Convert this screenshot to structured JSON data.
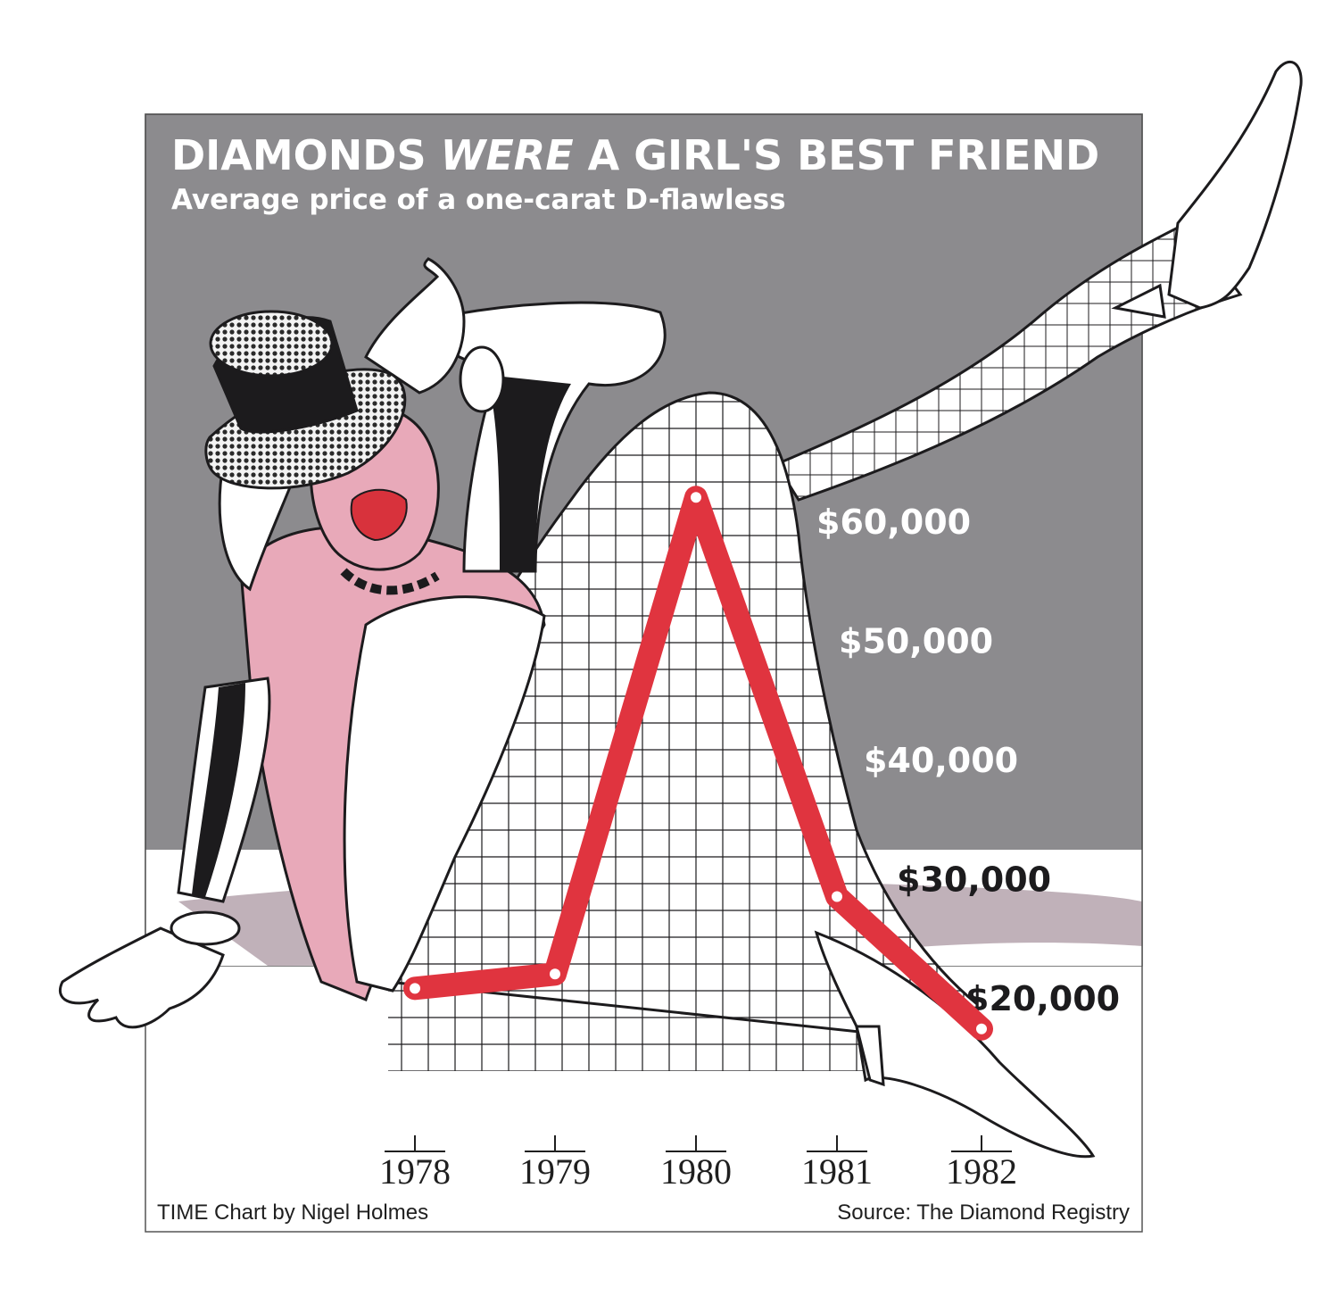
{
  "chart_data": {
    "type": "line",
    "title_parts": [
      "DIAMONDS ",
      "WERE",
      " A GIRL'S BEST FRIEND"
    ],
    "subtitle": "Average price of a one-carat D-flawless",
    "x": [
      "1978",
      "1979",
      "1980",
      "1981",
      "1982"
    ],
    "series": [
      {
        "values": [
          20800,
          22000,
          62000,
          28500,
          17400
        ]
      }
    ],
    "y_ticks": [
      "$20,000",
      "$30,000",
      "$40,000",
      "$50,000",
      "$60,000"
    ],
    "y_tick_values": [
      20000,
      30000,
      40000,
      50000,
      60000
    ],
    "ylim": [
      15000,
      65000
    ],
    "grid": true,
    "line_color": "#e0343f",
    "credit": "TIME Chart by Nigel Holmes",
    "source": "Source: The Diamond Registry"
  },
  "colors": {
    "background_gray": "#8c8b8e",
    "floor": "#ffffff",
    "shadow": "#b5a3ad",
    "skin_pink": "#e8a9b9",
    "lips": "#d8323c",
    "ink": "#1c1b1d"
  },
  "illustration": {
    "figure": "showgirl-in-top-hat-illustration"
  }
}
